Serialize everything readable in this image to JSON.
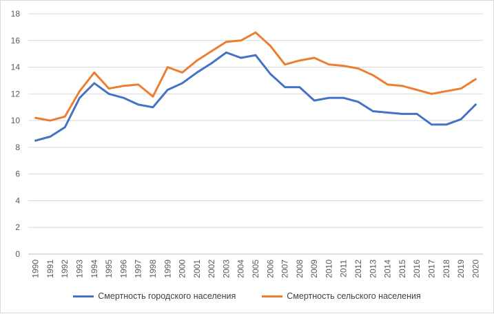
{
  "chart_data": {
    "type": "line",
    "title": "",
    "xlabel": "",
    "ylabel": "",
    "x": [
      "1990",
      "1991",
      "1992",
      "1993",
      "1994",
      "1995",
      "1996",
      "1997",
      "1998",
      "1999",
      "2000",
      "2001",
      "2002",
      "2003",
      "2004",
      "2005",
      "2006",
      "2007",
      "2008",
      "2009",
      "2010",
      "2011",
      "2012",
      "2013",
      "2014",
      "2015",
      "2016",
      "2017",
      "2018",
      "2019",
      "2020"
    ],
    "ylim": [
      0,
      18
    ],
    "yticks": [
      0,
      2,
      4,
      6,
      8,
      10,
      12,
      14,
      16,
      18
    ],
    "grid": true,
    "legend_position": "bottom",
    "series": [
      {
        "name": "Смертность городского населения",
        "color": "#4472c4",
        "values": [
          8.5,
          8.8,
          9.5,
          11.7,
          12.8,
          12.0,
          11.7,
          11.2,
          11.0,
          12.3,
          12.8,
          13.6,
          14.3,
          15.1,
          14.7,
          14.9,
          13.5,
          12.5,
          12.5,
          11.5,
          11.7,
          11.7,
          11.4,
          10.7,
          10.6,
          10.5,
          10.5,
          9.7,
          9.7,
          10.1,
          11.2
        ]
      },
      {
        "name": "Смертность сельского населения",
        "color": "#ed7d31",
        "values": [
          10.2,
          10.0,
          10.3,
          12.2,
          13.6,
          12.4,
          12.6,
          12.7,
          11.8,
          14.0,
          13.6,
          14.5,
          15.2,
          15.9,
          16.0,
          16.6,
          15.6,
          14.2,
          14.5,
          14.7,
          14.2,
          14.1,
          13.9,
          13.4,
          12.7,
          12.6,
          12.3,
          12.0,
          12.2,
          12.4,
          13.1
        ]
      }
    ]
  }
}
